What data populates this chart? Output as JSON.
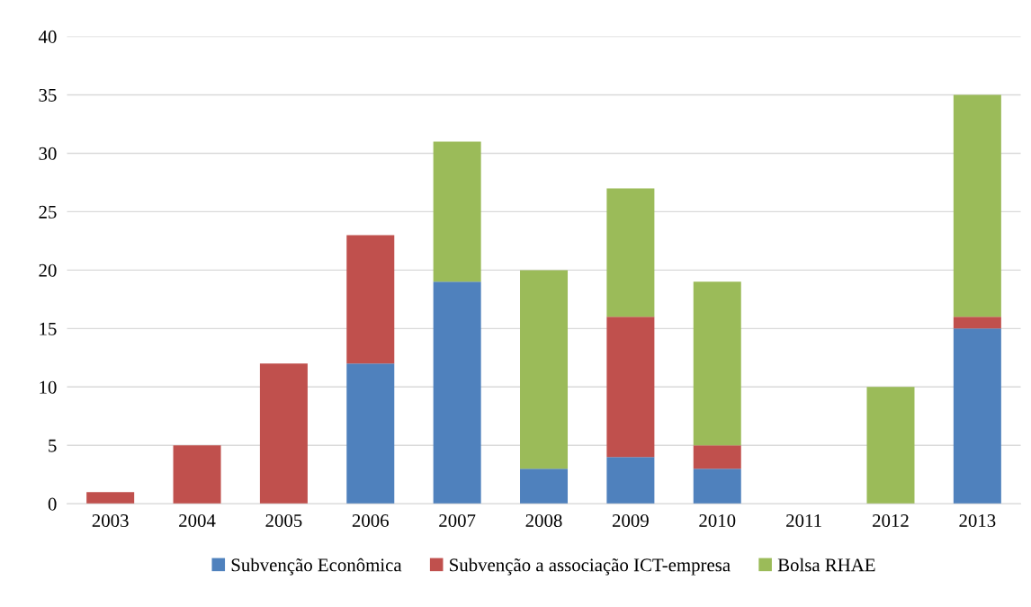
{
  "chart_data": {
    "type": "bar",
    "stacked": true,
    "categories": [
      "2003",
      "2004",
      "2005",
      "2006",
      "2007",
      "2008",
      "2009",
      "2010",
      "2011",
      "2012",
      "2013"
    ],
    "series": [
      {
        "name": "Subvenção Econômica",
        "color": "#4f81bd",
        "values": [
          0,
          0,
          0,
          12,
          19,
          3,
          4,
          3,
          0,
          0,
          15
        ]
      },
      {
        "name": "Subvenção a associação ICT-empresa",
        "color": "#c0504d",
        "values": [
          1,
          5,
          12,
          11,
          0,
          0,
          12,
          2,
          0,
          0,
          1
        ]
      },
      {
        "name": "Bolsa RHAE",
        "color": "#9bbb59",
        "values": [
          0,
          0,
          0,
          0,
          12,
          17,
          11,
          14,
          0,
          10,
          19
        ]
      }
    ],
    "ylim": [
      0,
      40
    ],
    "yticks": [
      0,
      5,
      10,
      15,
      20,
      25,
      30,
      35,
      40
    ],
    "grid": "y",
    "legend": "bottom"
  }
}
